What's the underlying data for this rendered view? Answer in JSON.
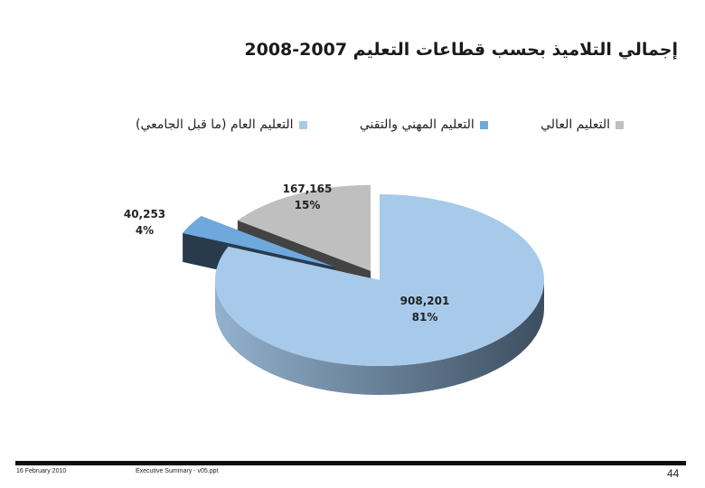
{
  "title": "إجمالي التلاميذ بحسب قطاعات التعليم 2007-2008",
  "chart_data": {
    "type": "pie",
    "title": "إجمالي التلاميذ بحسب قطاعات التعليم 2007-2008",
    "legend_position": "top",
    "three_d": true,
    "exploded": true,
    "slices": [
      {
        "name": "التعليم العام (ما قبل الجامعي)",
        "value": 908201,
        "value_label": "908,201",
        "percent_label": "81%",
        "color": "#A7CAEB"
      },
      {
        "name": "التعليم المهني والتقني",
        "value": 40253,
        "value_label": "40,253",
        "percent_label": "4%",
        "color": "#6FA8DC"
      },
      {
        "name": "التعليم العالي",
        "value": 167165,
        "value_label": "167,165",
        "percent_label": "15%",
        "color": "#BFBFBF"
      }
    ]
  },
  "footer": {
    "date": "16 February 2010",
    "file": "Executive Summary - v05.ppt",
    "page": "44"
  }
}
